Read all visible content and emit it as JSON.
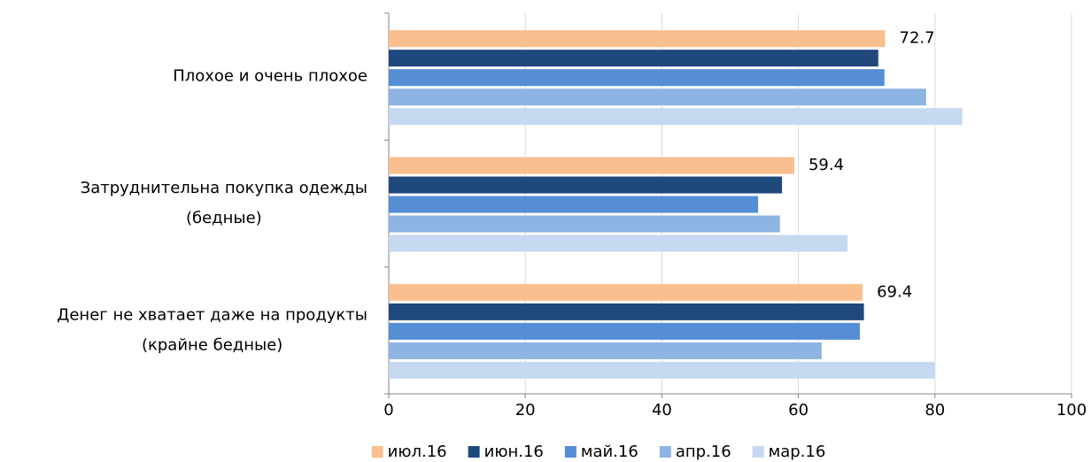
{
  "chart_data": {
    "type": "hbar",
    "categories": [
      [
        "Плохое и очень плохое"
      ],
      [
        "Затруднительна покупка одежды",
        "(бедные)"
      ],
      [
        "Денег не хватает даже на продукты",
        "(крайне бедные)"
      ]
    ],
    "series": [
      {
        "name": "июл.16",
        "color": "#F9BF8F",
        "values": [
          72.7,
          59.4,
          69.4
        ],
        "data_labels": true
      },
      {
        "name": "июн.16",
        "color": "#1F497D",
        "values": [
          71.7,
          57.6,
          69.6
        ]
      },
      {
        "name": "май.16",
        "color": "#558ED5",
        "values": [
          72.6,
          54.1,
          69.0
        ]
      },
      {
        "name": "апр.16",
        "color": "#8EB4E3",
        "values": [
          78.7,
          57.3,
          63.4
        ]
      },
      {
        "name": "мар.16",
        "color": "#C6D9F1",
        "values": [
          84.0,
          67.2,
          80.0
        ]
      }
    ],
    "xlim": [
      0,
      100
    ],
    "xticks": [
      0,
      20,
      40,
      60,
      80,
      100
    ],
    "grid": true,
    "legend": "bottom"
  }
}
